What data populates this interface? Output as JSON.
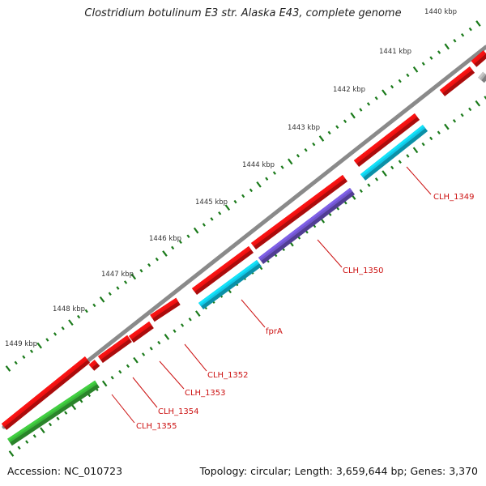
{
  "title": "Clostridium botulinum E3 str. Alaska E43, complete genome",
  "footer": {
    "accession": "Accession: NC_010723",
    "summary": "Topology: circular; Length: 3,659,644 bp; Genes: 3,370"
  },
  "ruler": {
    "labels": [
      "1440 kbp",
      "1441 kbp",
      "1442 kbp",
      "1443 kbp",
      "1444 kbp",
      "1445 kbp",
      "1446 kbp",
      "1447 kbp",
      "1448 kbp",
      "1449 kbp"
    ]
  },
  "genes": [
    {
      "id": "CLH_1349",
      "label": "CLH_1349"
    },
    {
      "id": "CLH_1350",
      "label": "CLH_1350"
    },
    {
      "id": "fprA",
      "label": "fprA"
    },
    {
      "id": "CLH_1352",
      "label": "CLH_1352"
    },
    {
      "id": "CLH_1353",
      "label": "CLH_1353"
    },
    {
      "id": "CLH_1354",
      "label": "CLH_1354"
    },
    {
      "id": "CLH_1355",
      "label": "CLH_1355"
    }
  ],
  "colors": {
    "backbone": "#8a8a8a",
    "forward": "#ee1111",
    "label": "#cc1111",
    "tick": "#1a7a1a",
    "cyan": "#11c8e8",
    "purple": "#7055cc",
    "green": "#3ab83a",
    "gray": "#b0b0b0",
    "tick_label": "#333333"
  }
}
